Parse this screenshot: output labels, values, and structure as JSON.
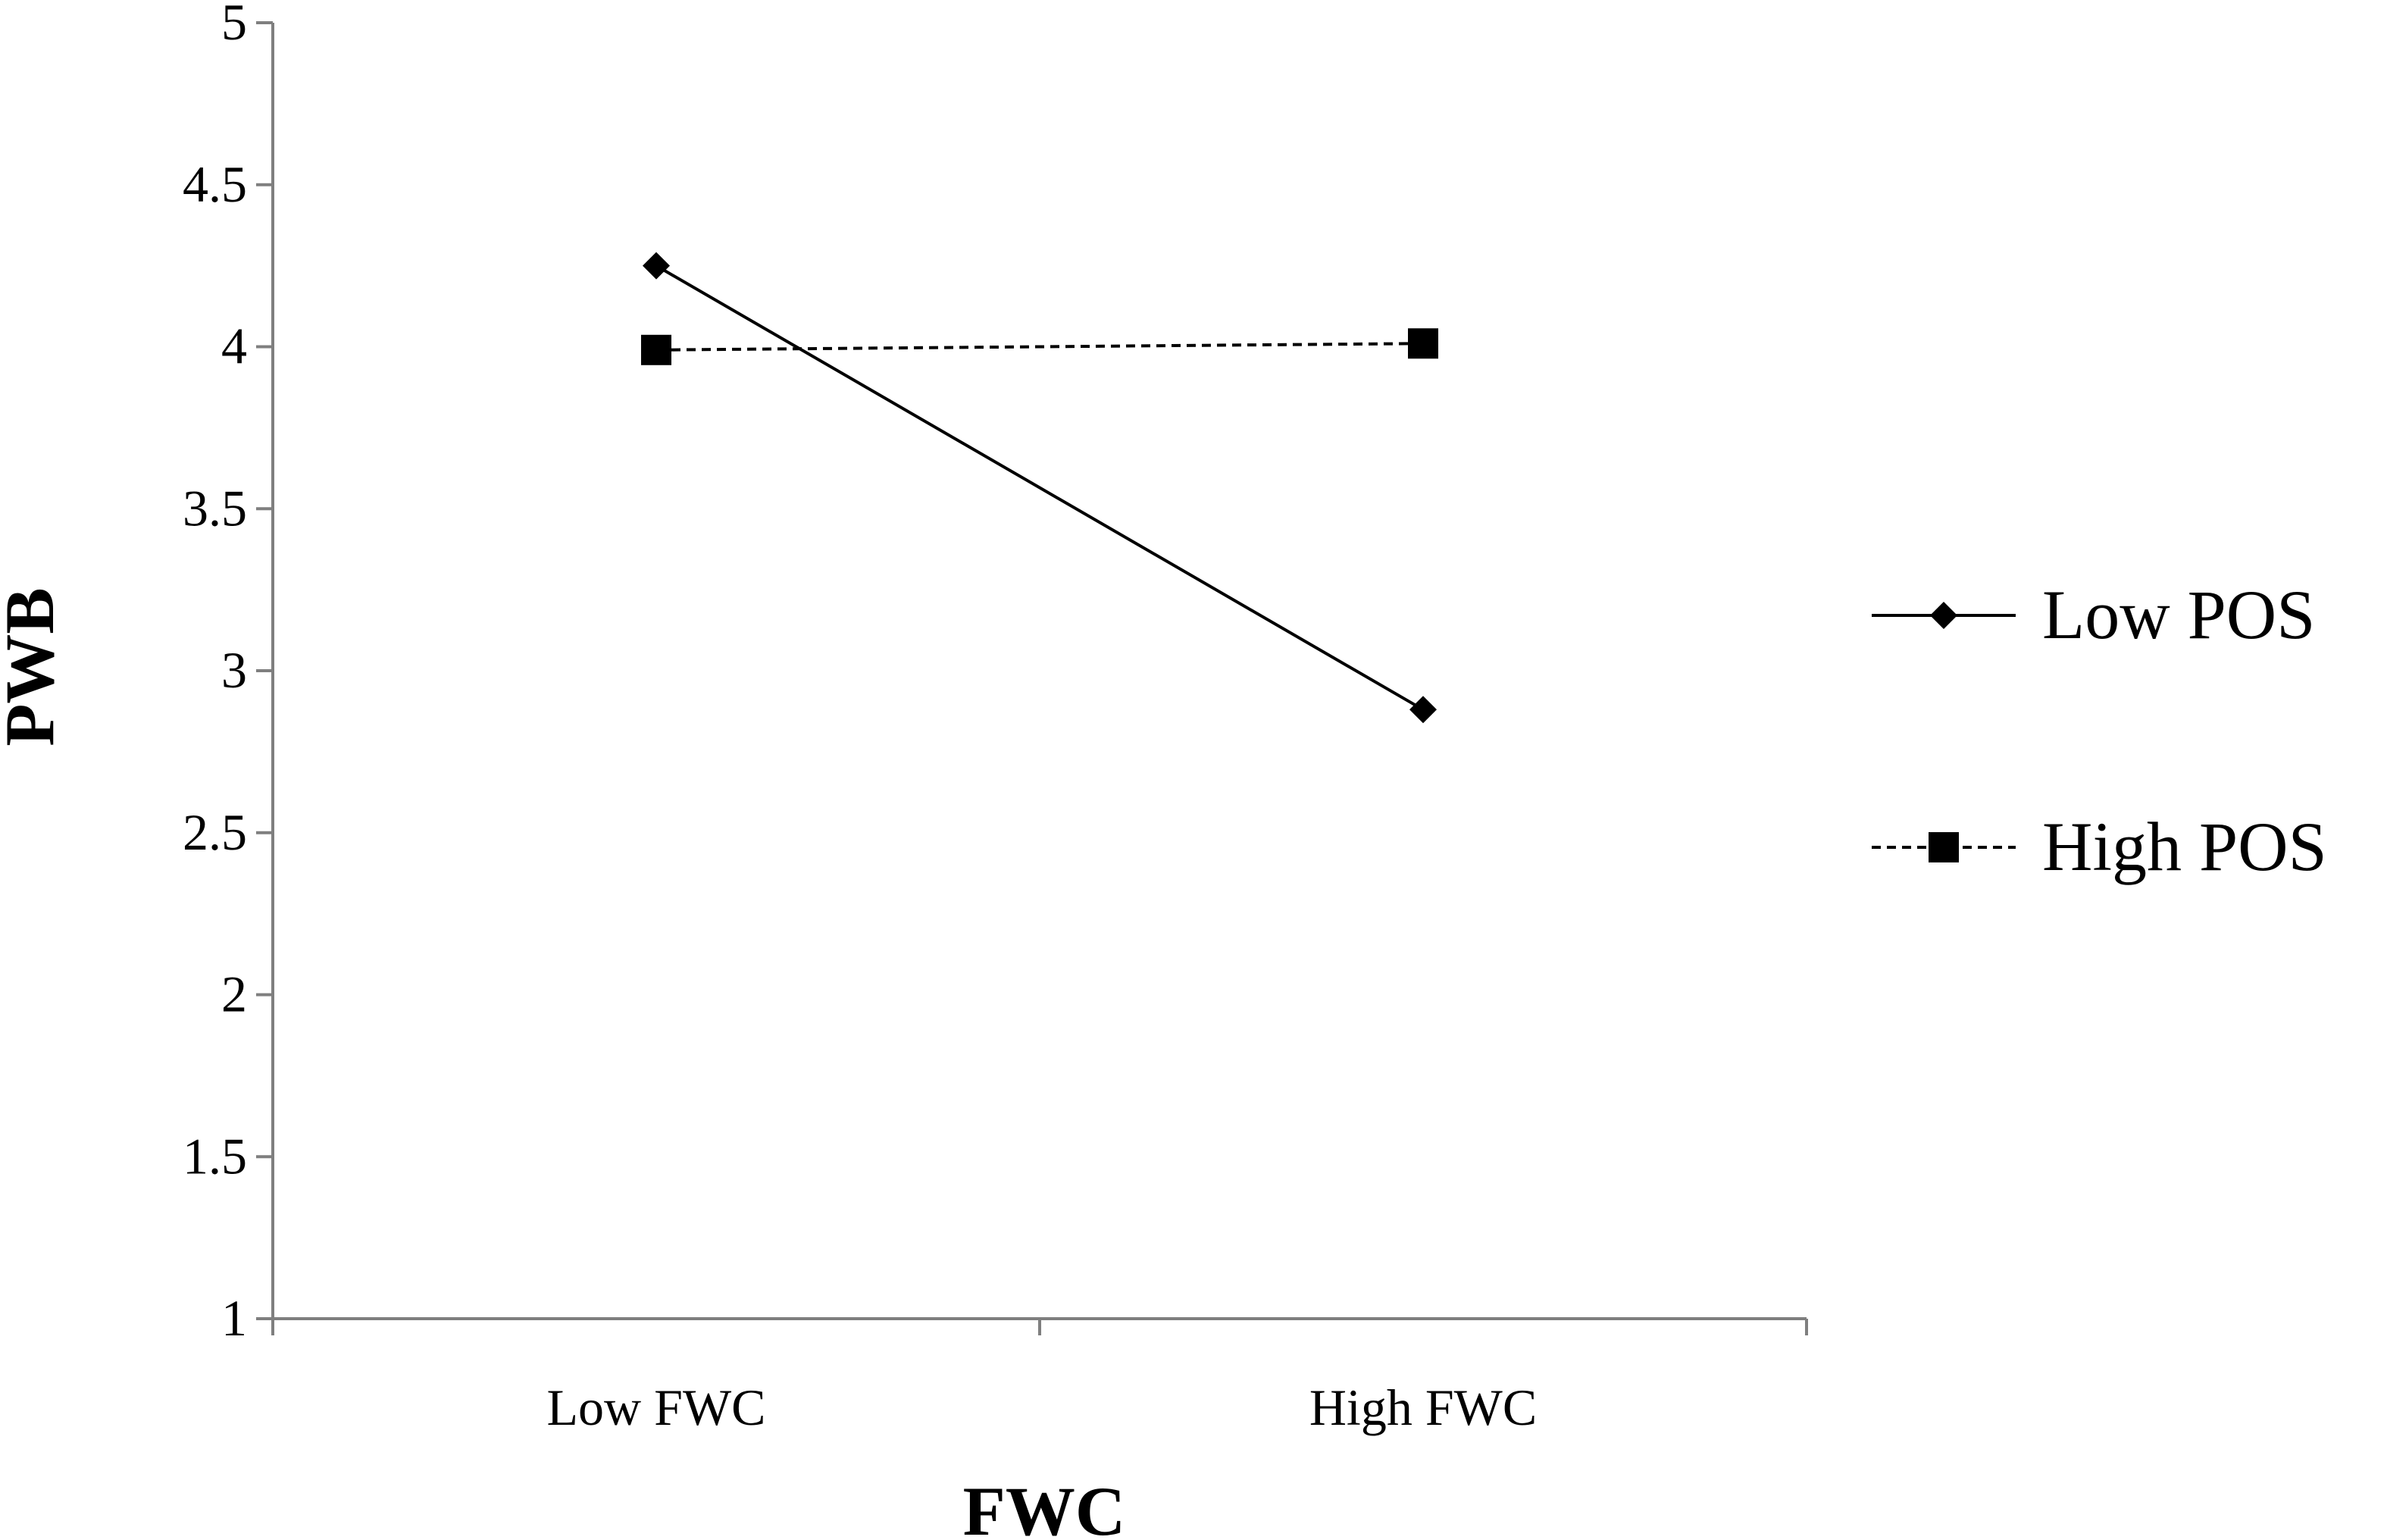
{
  "chart_data": {
    "type": "line",
    "title": "",
    "xlabel": "FWC",
    "ylabel": "PWB",
    "categories": [
      "Low FWC",
      "High FWC"
    ],
    "series": [
      {
        "name": "Low POS",
        "values": [
          4.25,
          2.88
        ],
        "line_style": "solid",
        "marker": "diamond",
        "color": "#000000"
      },
      {
        "name": "High POS",
        "values": [
          3.99,
          4.01
        ],
        "line_style": "dashed",
        "marker": "square",
        "color": "#000000"
      }
    ],
    "ylim": [
      1,
      5
    ],
    "yticks": [
      "1",
      "1.5",
      "2",
      "2.5",
      "3",
      "3.5",
      "4",
      "4.5",
      "5"
    ],
    "grid": false,
    "legend_position": "right"
  }
}
